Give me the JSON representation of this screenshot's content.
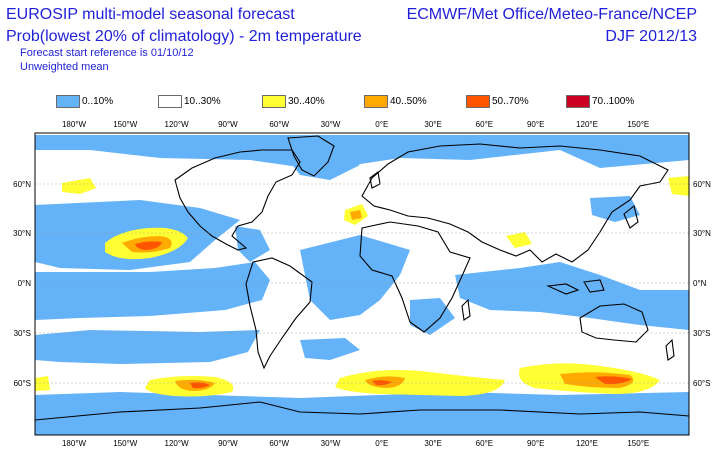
{
  "header": {
    "title_line1": "EUROSIP multi-model seasonal forecast",
    "title_line2": "Prob(lowest 20% of climatology) - 2m temperature",
    "forecast_ref": "Forecast start reference is 01/10/12",
    "weighting": "Unweighted mean",
    "centres": "ECMWF/Met Office/Meteo-France/NCEP",
    "season": "DJF 2012/13"
  },
  "legend": [
    {
      "label": "0..10%",
      "color": "#64b2f7"
    },
    {
      "label": "10..30%",
      "color": "#ffffff"
    },
    {
      "label": "30..40%",
      "color": "#ffff33"
    },
    {
      "label": "40..50%",
      "color": "#ffaa00"
    },
    {
      "label": "50..70%",
      "color": "#ff5500"
    },
    {
      "label": "70..100%",
      "color": "#cc0022"
    }
  ],
  "axes": {
    "lon_labels_top": [
      "180°W",
      "150°W",
      "120°W",
      "90°W",
      "60°W",
      "30°W",
      "0°E",
      "30°E",
      "60°E",
      "90°E",
      "120°E",
      "150°E"
    ],
    "lon_labels_bottom": [
      "180°W",
      "150°W",
      "120°W",
      "90°W",
      "60°W",
      "30°W",
      "0°E",
      "30°E",
      "60°E",
      "90°E",
      "120°E",
      "150°E"
    ],
    "lat_labels": [
      "60°N",
      "30°N",
      "0°N",
      "30°S",
      "60°S"
    ]
  },
  "colors": {
    "low": "#64b2f7",
    "mid": "#ffffff",
    "p30": "#ffff33",
    "p40": "#ffaa00",
    "p50": "#ff5500",
    "p70": "#cc0022",
    "coast": "#000000",
    "text": "#1f1fd8"
  }
}
